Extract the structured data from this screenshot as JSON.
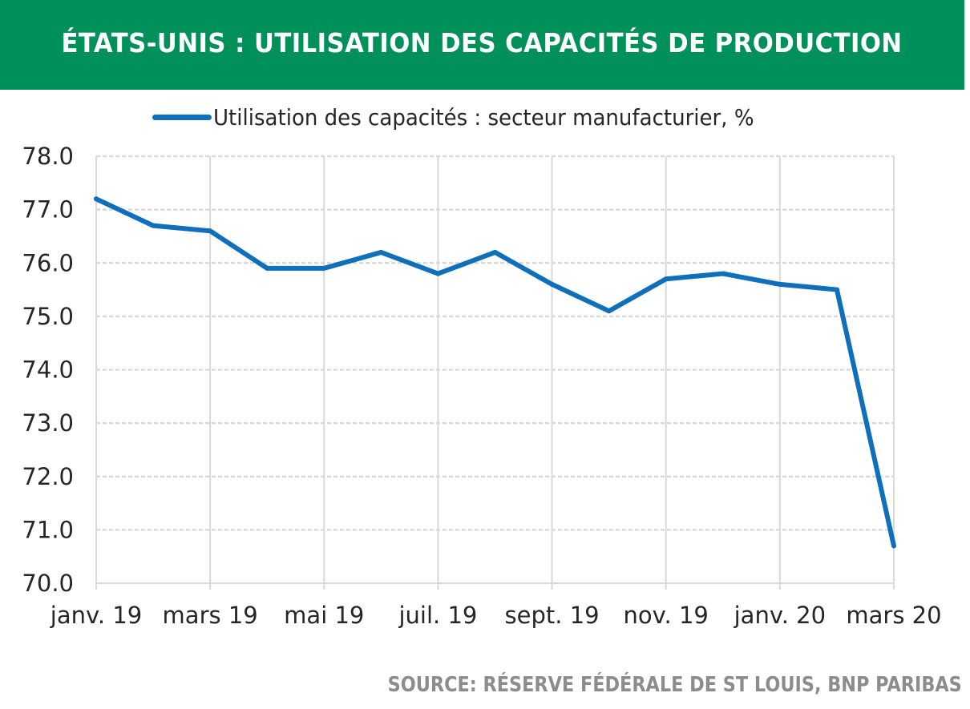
{
  "header": {
    "title": "ÉTATS-UNIS : UTILISATION DES CAPACITÉS DE PRODUCTION"
  },
  "footer": {
    "source": "SOURCE: RÉSERVE FÉDÉRALE DE ST LOUIS, BNP PARIBAS"
  },
  "colors": {
    "header_background": "#00905a",
    "series_line": "#0f6fba",
    "grid": "#d9d9d9",
    "source_text": "#8c8c8c"
  },
  "chart_data": {
    "type": "line",
    "title": "ÉTATS-UNIS : UTILISATION DES CAPACITÉS DE PRODUCTION",
    "xlabel": "",
    "ylabel": "",
    "x": [
      "janv. 19",
      "févr. 19",
      "mars 19",
      "avr. 19",
      "mai 19",
      "juin 19",
      "juil. 19",
      "août 19",
      "sept. 19",
      "oct. 19",
      "nov. 19",
      "déc. 19",
      "janv. 20",
      "févr. 20",
      "mars 20"
    ],
    "x_tick_labels": [
      "janv. 19",
      "mars 19",
      "mai 19",
      "juil. 19",
      "sept. 19",
      "nov. 19",
      "janv. 20",
      "mars 20"
    ],
    "series": [
      {
        "name": "Utilisation des capacités : secteur manufacturier, %",
        "values": [
          77.2,
          76.7,
          76.6,
          75.9,
          75.9,
          76.2,
          75.8,
          76.2,
          75.6,
          75.1,
          75.7,
          75.8,
          75.6,
          75.5,
          70.7
        ]
      }
    ],
    "ylim": [
      70.0,
      78.0
    ],
    "y_ticks": [
      "70.0",
      "71.0",
      "72.0",
      "73.0",
      "74.0",
      "75.0",
      "76.0",
      "77.0",
      "78.0"
    ],
    "grid": {
      "horizontal": true,
      "horizontal_style": "dashed",
      "vertical": true,
      "vertical_at": "labelled ticks"
    },
    "legend": "top-center"
  }
}
